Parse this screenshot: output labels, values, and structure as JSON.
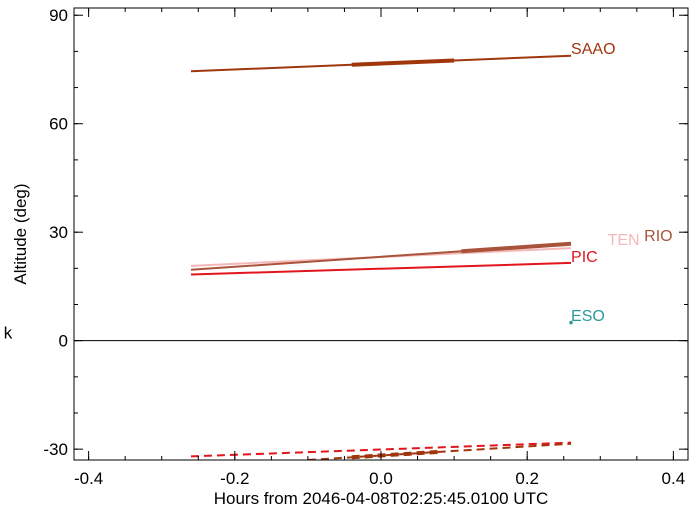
{
  "chart_data": {
    "type": "line",
    "title": "",
    "xlabel": "Hours from 2046-04-08T02:25:45.0100 UTC",
    "ylabel": "Altitude (deg)",
    "xlim": [
      -0.42,
      0.42
    ],
    "ylim": [
      -33,
      92
    ],
    "x_ticks": [
      -0.4,
      -0.2,
      0.0,
      0.2,
      0.4
    ],
    "x_tick_labels": [
      "-0.4",
      "-0.2",
      "0.0",
      "0.2",
      "0.4"
    ],
    "y_ticks": [
      -30,
      0,
      30,
      60,
      90
    ],
    "y_tick_labels": [
      "-30",
      "0",
      "30",
      "60",
      "90"
    ],
    "zero_line": true,
    "side_mark": "k",
    "series": [
      {
        "name": "SAAO",
        "color": "#a0360c",
        "x": [
          -0.26,
          0.26
        ],
        "y": [
          74.5,
          78.8
        ],
        "thick_x": [
          -0.04,
          0.1
        ],
        "label_pos": [
          0.26,
          79.3
        ]
      },
      {
        "name": "TEN",
        "color": "#f4b8b8",
        "x": [
          -0.26,
          0.26
        ],
        "y": [
          20.7,
          25.6
        ],
        "label_pos": [
          0.31,
          26.5
        ]
      },
      {
        "name": "RIO",
        "color": "#a9543a",
        "x": [
          -0.26,
          0.26
        ],
        "y": [
          19.6,
          26.8
        ],
        "thick_x": [
          0.11,
          0.26
        ],
        "label_pos": [
          0.36,
          27.6
        ]
      },
      {
        "name": "PIC",
        "color": "#e2141c",
        "x": [
          -0.26,
          0.26
        ],
        "y": [
          18.3,
          21.5
        ],
        "label_pos": [
          0.26,
          21.8
        ]
      },
      {
        "name": "ESO",
        "color": "#2a9a9a",
        "x": [
          0.26
        ],
        "y": [
          5.0
        ],
        "marker": "point",
        "label_pos": [
          0.26,
          5.4
        ]
      },
      {
        "name": "",
        "color": "#e2141c",
        "dashed": true,
        "x": [
          -0.26,
          0.26
        ],
        "y": [
          -32.0,
          -28.2
        ]
      },
      {
        "name": "",
        "color": "#a0360c",
        "dashed": true,
        "x": [
          -0.1,
          0.26
        ],
        "y": [
          -33.0,
          -28.5
        ],
        "thick_x": [
          -0.04,
          0.08
        ]
      }
    ]
  }
}
